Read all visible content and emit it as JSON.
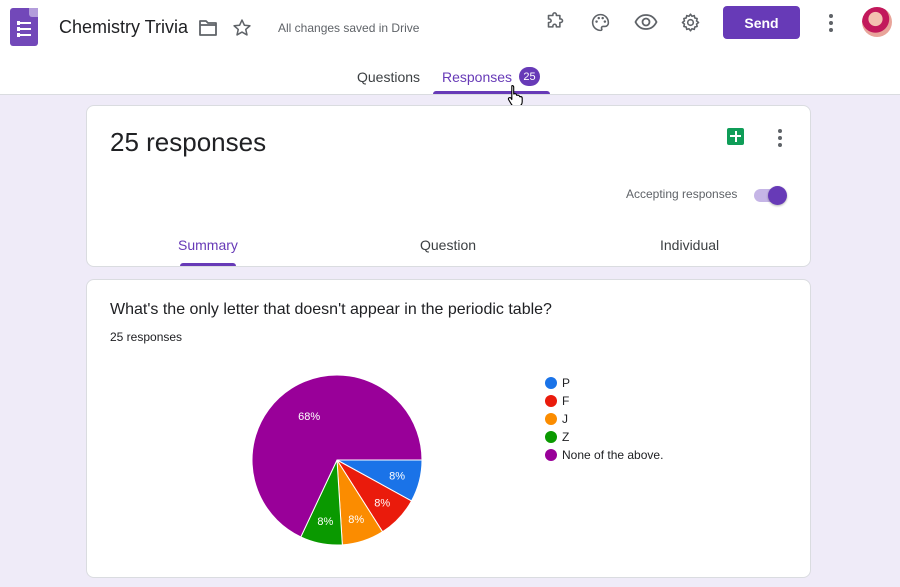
{
  "header": {
    "title": "Chemistry Trivia",
    "saved_status": "All changes saved in Drive",
    "send_label": "Send"
  },
  "tabs": {
    "questions_label": "Questions",
    "responses_label": "Responses",
    "responses_count": "25"
  },
  "summary_card": {
    "title": "25 responses",
    "accepting_label": "Accepting responses",
    "accepting_responses": true,
    "subtabs": [
      "Summary",
      "Question",
      "Individual"
    ],
    "active_subtab": "Summary"
  },
  "question_card": {
    "question": "What's the only letter that doesn't appear in the periodic table?",
    "response_count": "25 responses"
  },
  "chart_data": {
    "type": "pie",
    "categories": [
      "P",
      "F",
      "J",
      "Z",
      "None of the above."
    ],
    "values": [
      8,
      8,
      8,
      8,
      68
    ],
    "value_labels": [
      "8%",
      "8%",
      "8%",
      "8%",
      "68%"
    ],
    "colors": [
      "#1a73e8",
      "#ea1b0c",
      "#fb8c00",
      "#0a9900",
      "#990099"
    ],
    "legend": "right"
  },
  "icons": [
    "forms-logo-icon",
    "folder-icon",
    "star-icon",
    "addon-icon",
    "palette-icon",
    "eye-icon",
    "gear-icon",
    "more-vert-icon",
    "sheets-icon",
    "pointer-cursor-icon"
  ],
  "colors": {
    "accent": "#673ab7",
    "page_bg": "#efebf8"
  }
}
